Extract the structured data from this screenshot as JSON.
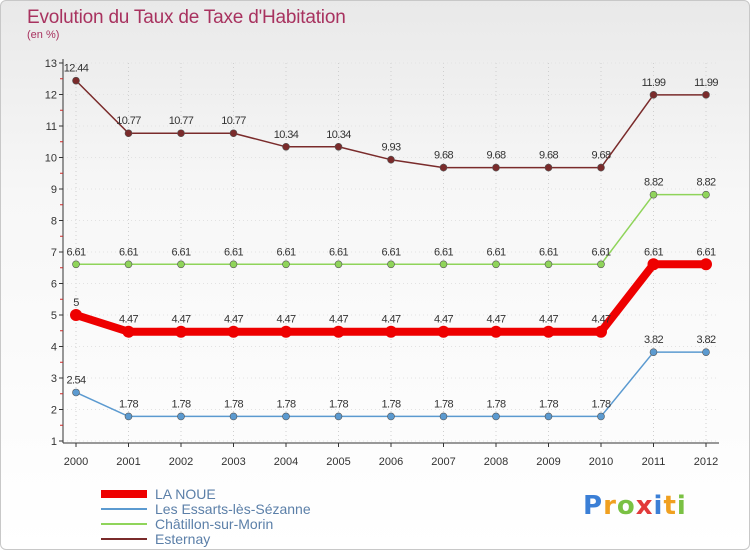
{
  "chart_data": {
    "type": "line",
    "title": "Evolution du Taux de Taxe d'Habitation",
    "subtitle": "(en %)",
    "xlabel": "",
    "ylabel": "",
    "categories": [
      "2000",
      "2001",
      "2002",
      "2003",
      "2004",
      "2005",
      "2006",
      "2007",
      "2008",
      "2009",
      "2010",
      "2011",
      "2012"
    ],
    "ylim": [
      1,
      13
    ],
    "yticks": [
      "1",
      "2",
      "3",
      "4",
      "5",
      "6",
      "7",
      "8",
      "9",
      "10",
      "11",
      "12",
      "13"
    ],
    "legend_position": "bottom-left",
    "series": [
      {
        "name": "LA NOUE",
        "color": "#ee0000",
        "values": [
          5,
          4.47,
          4.47,
          4.47,
          4.47,
          4.47,
          4.47,
          4.47,
          4.47,
          4.47,
          4.47,
          6.61,
          6.61
        ],
        "labels": [
          "5",
          "4.47",
          "4.47",
          "4.47",
          "4.47",
          "4.47",
          "4.47",
          "4.47",
          "4.47",
          "4.47",
          "4.47",
          "6.61",
          "6.61"
        ]
      },
      {
        "name": "Les Essarts-lès-Sézanne",
        "color": "#5b9ad0",
        "values": [
          2.54,
          1.78,
          1.78,
          1.78,
          1.78,
          1.78,
          1.78,
          1.78,
          1.78,
          1.78,
          1.78,
          3.82,
          3.82
        ],
        "labels": [
          "2.54",
          "1.78",
          "1.78",
          "1.78",
          "1.78",
          "1.78",
          "1.78",
          "1.78",
          "1.78",
          "1.78",
          "1.78",
          "3.82",
          "3.82"
        ]
      },
      {
        "name": "Châtillon-sur-Morin",
        "color": "#8fd45a",
        "values": [
          6.61,
          6.61,
          6.61,
          6.61,
          6.61,
          6.61,
          6.61,
          6.61,
          6.61,
          6.61,
          6.61,
          8.82,
          8.82
        ],
        "labels": [
          "6.61",
          "6.61",
          "6.61",
          "6.61",
          "6.61",
          "6.61",
          "6.61",
          "6.61",
          "6.61",
          "6.61",
          "6.61",
          "8.82",
          "8.82"
        ]
      },
      {
        "name": "Esternay",
        "color": "#7a2b2b",
        "values": [
          12.44,
          10.77,
          10.77,
          10.77,
          10.34,
          10.34,
          9.93,
          9.68,
          9.68,
          9.68,
          9.68,
          11.99,
          11.99
        ],
        "labels": [
          "12.44",
          "10.77",
          "10.77",
          "10.77",
          "10.34",
          "10.34",
          "9.93",
          "9.68",
          "9.68",
          "9.68",
          "9.68",
          "11.99",
          "11.99"
        ]
      }
    ]
  },
  "logo": {
    "letters": [
      "P",
      "r",
      "o",
      "x",
      "i",
      "t",
      "i"
    ],
    "colors": [
      "#3b7fd6",
      "#f0a020",
      "#7ac143",
      "#e23a3a",
      "#3b7fd6",
      "#f0a020",
      "#7ac143"
    ]
  }
}
